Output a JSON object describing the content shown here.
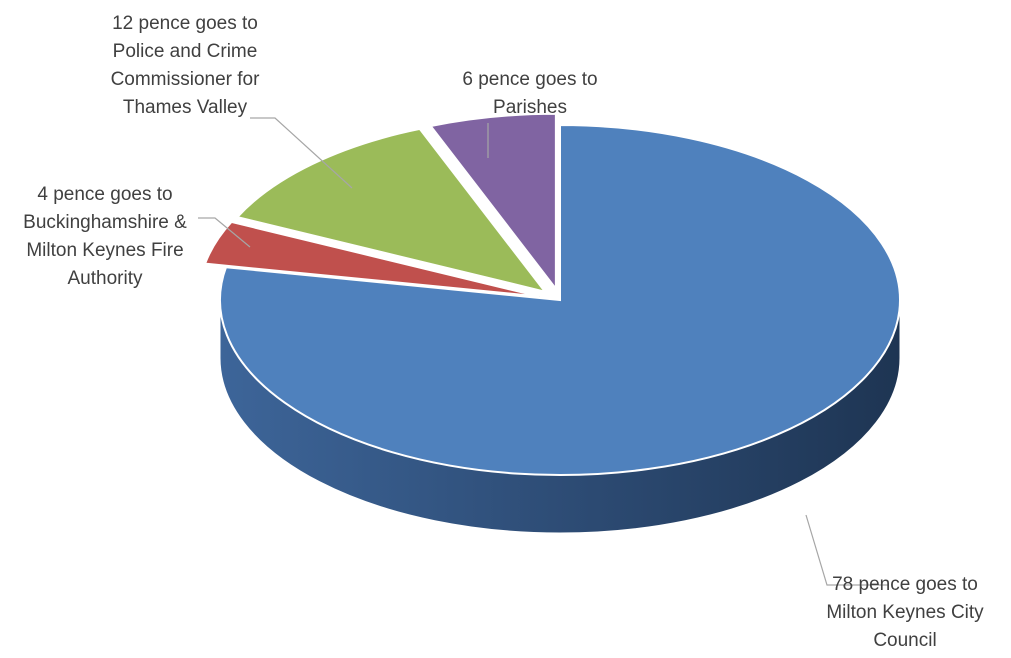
{
  "chart_data": {
    "type": "pie",
    "title": "",
    "slices": [
      {
        "label": "78 pence goes to Milton Keynes City Council",
        "lines": [
          "78 pence goes to",
          "Milton Keynes City",
          "Council"
        ],
        "value": 78,
        "color": "#4F81BD"
      },
      {
        "label": "4 pence goes to Buckinghamshire & Milton Keynes Fire Authority",
        "lines": [
          "4 pence goes to",
          "Buckinghamshire &",
          "Milton Keynes Fire",
          "Authority"
        ],
        "value": 4,
        "color": "#C0504D"
      },
      {
        "label": "12 pence goes to Police and Crime Commissioner for Thames Valley",
        "lines": [
          "12 pence goes to",
          "Police and Crime",
          "Commissioner for",
          "Thames Valley"
        ],
        "value": 12,
        "color": "#9BBB59"
      },
      {
        "label": "6 pence goes to Parishes",
        "lines": [
          "6 pence goes to",
          "Parishes"
        ],
        "value": 6,
        "color": "#8064A2"
      }
    ],
    "legend": "none",
    "style": "3d-exploded"
  }
}
